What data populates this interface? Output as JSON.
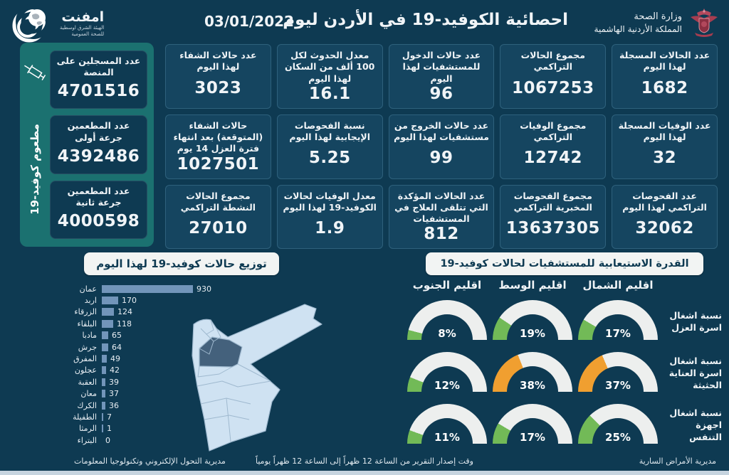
{
  "header": {
    "title": "احصائية الكوفيد-19 في الأردن ليوم",
    "date": "03/01/2022",
    "ministry_line1": "وزارة الصحة",
    "ministry_line2": "المملكة الأردنية الهاشمية",
    "emphnet_name": "امفنت",
    "emphnet_sub1": "الهيئة الشرق اوسطية",
    "emphnet_sub2": "للصحة العمومية"
  },
  "vaccine_panel": {
    "vertical_label": "مطعوم كوفيد-19",
    "cards": [
      {
        "label": "عدد المسجلين على المنصة",
        "value": "4701516"
      },
      {
        "label": "عدد المطعمين جرعة أولى",
        "value": "4392486"
      },
      {
        "label": "عدد المطعمين جرعة ثانية",
        "value": "4000598"
      }
    ]
  },
  "stats_cards": [
    {
      "label": "عدد الحالات المسجلة لهذا اليوم",
      "value": "1682"
    },
    {
      "label": "مجموع الحالات التراكمي",
      "value": "1067253"
    },
    {
      "label": "عدد حالات الدخول للمستشفيات لهذا اليوم",
      "value": "96"
    },
    {
      "label": "معدل الحدوث لكل 100 ألف من السكان لهذا اليوم",
      "value": "16.1"
    },
    {
      "label": "عدد حالات الشفاء لهذا اليوم",
      "value": "3023"
    },
    {
      "label": "عدد الوفيات المسجلة لهذا اليوم",
      "value": "32"
    },
    {
      "label": "مجموع الوفيات التراكمي",
      "value": "12742"
    },
    {
      "label": "عدد حالات الخروج من مستشفيات لهذا اليوم",
      "value": "99"
    },
    {
      "label": "نسبة الفحوصات الإيجابية لهذا اليوم",
      "value": "5.25"
    },
    {
      "label": "حالات الشفاء (المتوقعة) بعد انتهاء فترة العزل 14 يوم",
      "value": "1027501"
    },
    {
      "label": "عدد الفحوصات التراكمي لهذا اليوم",
      "value": "32062"
    },
    {
      "label": "مجموع الفحوصات المخبرية التراكمي",
      "value": "13637305"
    },
    {
      "label": "عدد الحالات المؤكدة التي تتلقى العلاج في المستشفيات",
      "value": "812"
    },
    {
      "label": "معدل الوفيات لحالات الكوفيد-19 لهذا اليوم",
      "value": "1.9"
    },
    {
      "label": "مجموع الحالات النشطة التراكمي",
      "value": "27010"
    }
  ],
  "chart_data": [
    {
      "type": "bar",
      "orientation": "horizontal",
      "title": "توزيع حالات كوفيد-19 لهذا اليوم",
      "categories": [
        "عمان",
        "اربد",
        "الزرقاء",
        "البلقاء",
        "مادبا",
        "جرش",
        "المفرق",
        "عجلون",
        "العقبة",
        "معان",
        "الكرك",
        "الطفيلة",
        "الرمثا",
        "البتراء"
      ],
      "values": [
        930,
        170,
        124,
        118,
        65,
        64,
        49,
        42,
        39,
        37,
        36,
        7,
        1,
        0
      ],
      "xlim": [
        0,
        930
      ],
      "bar_color": "#7295ba"
    },
    {
      "type": "gauge-grid",
      "title": "القدرة الاستيعابية للمستشفيات لحالات كوفيد-19",
      "columns": [
        "اقليم الشمال",
        "اقليم الوسط",
        "اقليم الجنوب"
      ],
      "rows": [
        {
          "label": "نسبة اشغال اسرة العزل",
          "values": [
            17,
            19,
            8
          ],
          "colors": [
            "green",
            "green",
            "green"
          ]
        },
        {
          "label": "نسبة اشغال اسرة العناية الحثيثة",
          "values": [
            37,
            38,
            12
          ],
          "colors": [
            "orange",
            "orange",
            "green"
          ]
        },
        {
          "label": "نسبة اشغال اجهزة التنفس",
          "values": [
            25,
            17,
            11
          ],
          "colors": [
            "green",
            "green",
            "green"
          ]
        }
      ],
      "unit": "%"
    }
  ],
  "footer": {
    "right": "مديرية الأمراض السارية",
    "center": "وقت إصدار التقرير من الساعة 12 ظهراً إلى الساعة 12 ظهراً يومياً",
    "left": "مديرية التحول الإلكتروني وتكنولوجيا المعلومات"
  },
  "colors": {
    "background": "#0e3a52",
    "card": "#154560",
    "card_border": "#2e617c",
    "teal_panel": "#1b7170",
    "bar": "#7295ba",
    "green": "#72ba57",
    "orange": "#f09f30",
    "gauge_track": "#edefee",
    "map_light": "#cfe2f2",
    "map_dark": "#44617c",
    "pill_bg": "#f2f4f3"
  }
}
